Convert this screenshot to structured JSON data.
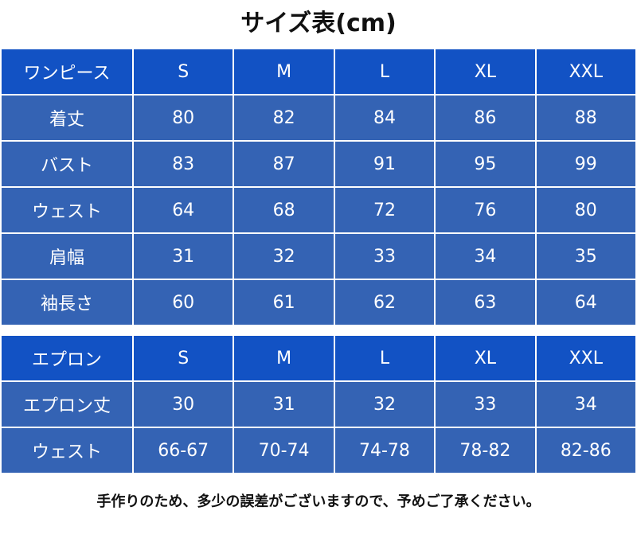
{
  "title": "サイズ表(cm)",
  "dress_table": {
    "header": [
      "ワンピース",
      "S",
      "M",
      "L",
      "XL",
      "XXL"
    ],
    "rows": [
      [
        "着丈",
        "80",
        "82",
        "84",
        "86",
        "88"
      ],
      [
        "バスト",
        "83",
        "87",
        "91",
        "95",
        "99"
      ],
      [
        "ウェスト",
        "64",
        "68",
        "72",
        "76",
        "80"
      ],
      [
        "肩幅",
        "31",
        "32",
        "33",
        "34",
        "35"
      ],
      [
        "袖長さ",
        "60",
        "61",
        "62",
        "63",
        "64"
      ]
    ]
  },
  "apron_table": {
    "header": [
      "エプロン",
      "S",
      "M",
      "L",
      "XL",
      "XXL"
    ],
    "rows": [
      [
        "エプロン丈",
        "30",
        "31",
        "32",
        "33",
        "34"
      ],
      [
        "ウェスト",
        "66-67",
        "70-74",
        "74-78",
        "78-82",
        "82-86"
      ]
    ]
  },
  "note": "手作りのため、多少の誤差がございますので、予めご了承ください。",
  "colors": {
    "header_bg": "#1252c4",
    "body_bg": "#3463b4",
    "text": "#ffffff"
  }
}
